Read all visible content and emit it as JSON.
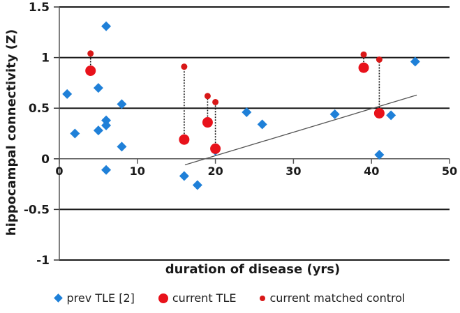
{
  "chart_data": {
    "type": "scatter",
    "title": "",
    "xlabel": "duration of disease (yrs)",
    "ylabel": "hippocampal connectivity (Z)",
    "xlim": [
      0,
      50
    ],
    "ylim": [
      -1,
      1.5
    ],
    "x_ticks": [
      0,
      10,
      20,
      30,
      40,
      50
    ],
    "x_tick_labels": [
      "0",
      "10",
      "20",
      "30",
      "40",
      "50"
    ],
    "y_ticks": [
      -1,
      -0.5,
      0,
      0.5,
      1,
      1.5
    ],
    "y_tick_labels": [
      "-1",
      "-0.5",
      "0",
      "0.5",
      "1",
      "1.5"
    ],
    "grid": "horizontal major gridlines",
    "legend_position": "bottom",
    "colors": {
      "prev_tle": "#1f80d8",
      "current_tle": "#e8121b",
      "matched_control": "#d81818",
      "trendline": "#555555",
      "grid": "#1a1a1a"
    },
    "series": [
      {
        "name": "prev TLE [2]",
        "marker": "diamond",
        "points": [
          [
            1,
            0.64
          ],
          [
            2,
            0.25
          ],
          [
            5,
            0.7
          ],
          [
            5,
            0.28
          ],
          [
            6,
            1.31
          ],
          [
            6,
            0.38
          ],
          [
            6,
            0.33
          ],
          [
            6,
            -0.11
          ],
          [
            8,
            0.54
          ],
          [
            8,
            0.12
          ],
          [
            16,
            -0.17
          ],
          [
            17.7,
            -0.26
          ],
          [
            20,
            0.08
          ],
          [
            24,
            0.46
          ],
          [
            26,
            0.34
          ],
          [
            35.3,
            0.44
          ],
          [
            41,
            0.04
          ],
          [
            42.5,
            0.43
          ],
          [
            45.6,
            0.96
          ]
        ]
      },
      {
        "name": "current TLE",
        "marker": "large-circle",
        "points": [
          [
            4,
            0.87
          ],
          [
            16,
            0.19
          ],
          [
            19,
            0.36
          ],
          [
            20,
            0.1
          ],
          [
            39,
            0.9
          ],
          [
            41,
            0.45
          ]
        ]
      },
      {
        "name": "current matched control",
        "marker": "small-circle",
        "points": [
          [
            4,
            1.04
          ],
          [
            16,
            0.91
          ],
          [
            19,
            0.62
          ],
          [
            20,
            0.56
          ],
          [
            39,
            1.03
          ],
          [
            41,
            0.98
          ]
        ]
      }
    ],
    "pair_connectors": "dotted vertical lines linking each current TLE point to its matched control",
    "trendline": {
      "series": "current TLE",
      "from": [
        16.1,
        -0.06
      ],
      "to": [
        45.8,
        0.63
      ]
    }
  },
  "legend": {
    "items": [
      {
        "label": "prev TLE [2]",
        "marker": "diamond"
      },
      {
        "label": "current TLE",
        "marker": "large-circle"
      },
      {
        "label": "current matched control",
        "marker": "small-circle"
      }
    ]
  }
}
